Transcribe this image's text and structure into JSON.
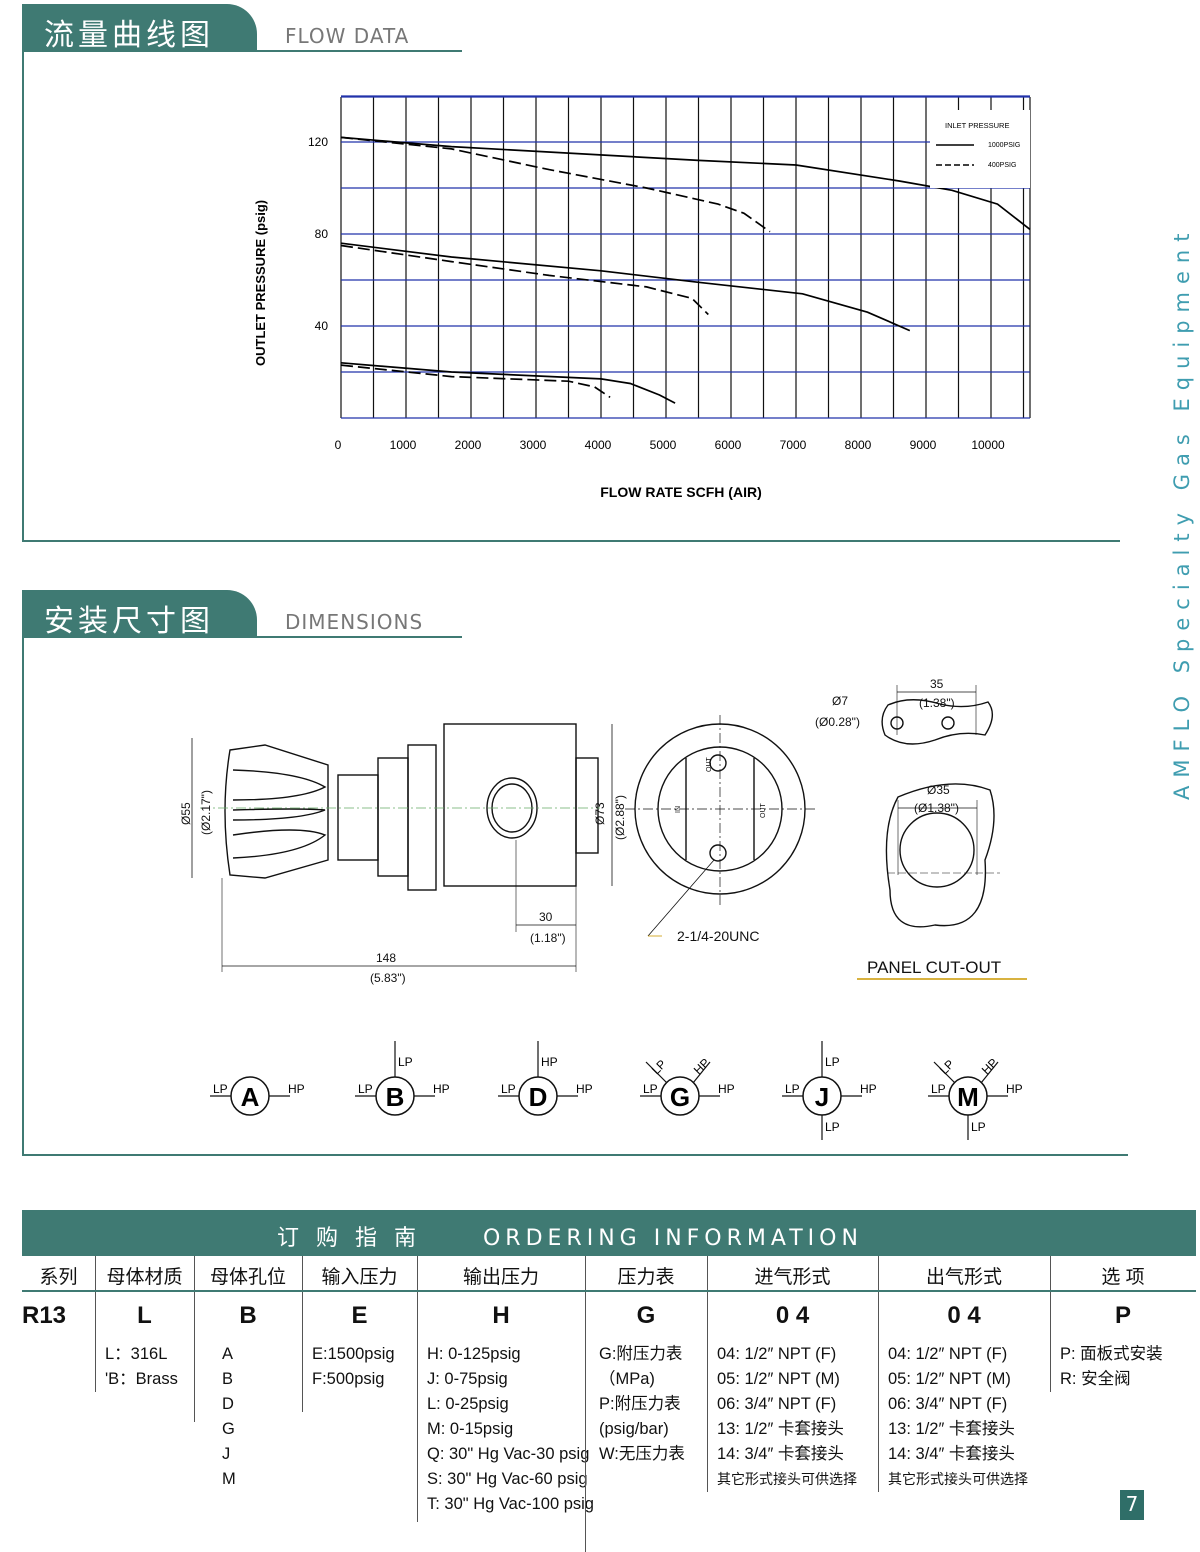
{
  "flow_section": {
    "title_cn": "流量曲线图",
    "title_en": "FLOW DATA"
  },
  "dim_section": {
    "title_cn": "安装尺寸图",
    "title_en": "DIMENSIONS"
  },
  "side_text": "AMFLO Specialty Gas Equipment",
  "chart_data": {
    "type": "line",
    "xlabel": "FLOW RATE SCFH (AIR)",
    "ylabel": "OUTLET PRESSURE (psig)",
    "xlim": [
      0,
      10600
    ],
    "ylim": [
      0,
      140
    ],
    "x_ticks": [
      "0",
      "1000",
      "2000",
      "3000",
      "4000",
      "5000",
      "6000",
      "7000",
      "8000",
      "9000",
      "10000"
    ],
    "y_ticks": [
      "40",
      "80",
      "120"
    ],
    "grid": true,
    "legend": {
      "title": "INLET PRESSURE",
      "placement": "top-right",
      "entries": [
        "1000PSIG",
        "400PSIG"
      ]
    },
    "series": [
      {
        "name": "1000PSIG",
        "style": "solid",
        "points": [
          [
            0,
            122
          ],
          [
            1700,
            118
          ],
          [
            5500,
            112
          ],
          [
            7000,
            110
          ],
          [
            8600,
            103
          ],
          [
            9400,
            99
          ],
          [
            10100,
            93
          ],
          [
            10600,
            82
          ]
        ]
      },
      {
        "name": "400PSIG",
        "style": "dashed",
        "points": [
          [
            0,
            122
          ],
          [
            1700,
            117
          ],
          [
            3200,
            108
          ],
          [
            4700,
            100
          ],
          [
            5800,
            93
          ],
          [
            6200,
            89
          ],
          [
            6600,
            81
          ]
        ]
      },
      {
        "name": "1000PSIG",
        "style": "solid",
        "points": [
          [
            0,
            76
          ],
          [
            1700,
            70
          ],
          [
            4000,
            64
          ],
          [
            5500,
            59
          ],
          [
            7100,
            54
          ],
          [
            8100,
            46
          ],
          [
            8750,
            38
          ]
        ]
      },
      {
        "name": "400PSIG",
        "style": "dashed",
        "points": [
          [
            0,
            75
          ],
          [
            1700,
            68
          ],
          [
            3200,
            62
          ],
          [
            4700,
            57
          ],
          [
            5400,
            52
          ],
          [
            5650,
            45
          ]
        ]
      },
      {
        "name": "1000PSIG",
        "style": "solid",
        "points": [
          [
            0,
            24
          ],
          [
            1700,
            20
          ],
          [
            4000,
            17
          ],
          [
            4450,
            15
          ],
          [
            4900,
            10
          ],
          [
            5140,
            6.5
          ]
        ]
      },
      {
        "name": "400PSIG",
        "style": "dashed",
        "points": [
          [
            0,
            23
          ],
          [
            1700,
            18
          ],
          [
            3500,
            16
          ],
          [
            3900,
            13.5
          ],
          [
            4140,
            9
          ]
        ]
      }
    ]
  },
  "dimensions": {
    "d55": "Ø55",
    "d55_in": "(Ø2.17\")",
    "d73": "Ø73",
    "d73_in": "(Ø2.88\")",
    "d30": "30",
    "d30_in": "(1.18\")",
    "d148": "148",
    "d148_in": "(5.83\")",
    "thread": "2-1/4-20UNC",
    "port_out": "OUT",
    "port_in": "IN",
    "d7": "Ø7",
    "d7_in": "(Ø0.28\")",
    "d35": "35",
    "d35_in": "(1.38\")",
    "d35b": "Ø35",
    "d35b_in": "(Ø1.38\")",
    "panel": "PANEL CUT-OUT"
  },
  "port_configs": [
    {
      "letter": "A",
      "left": "LP",
      "right": "HP",
      "up": "",
      "down": "",
      "ul": "",
      "ur": ""
    },
    {
      "letter": "B",
      "left": "LP",
      "right": "HP",
      "up": "LP",
      "down": "",
      "ul": "",
      "ur": ""
    },
    {
      "letter": "D",
      "left": "LP",
      "right": "HP",
      "up": "HP",
      "down": "",
      "ul": "",
      "ur": ""
    },
    {
      "letter": "G",
      "left": "LP",
      "right": "HP",
      "up": "",
      "down": "",
      "ul": "LP",
      "ur": "HP"
    },
    {
      "letter": "J",
      "left": "LP",
      "right": "HP",
      "up": "LP",
      "down": "LP",
      "ul": "",
      "ur": ""
    },
    {
      "letter": "M",
      "left": "LP",
      "right": "HP",
      "up": "",
      "down": "LP",
      "ul": "LP",
      "ur": "HP"
    }
  ],
  "ordering": {
    "title_cn": "订 购 指 南",
    "title_en": "ORDERING  INFORMATION",
    "columns": [
      {
        "header": "系列",
        "code": "R13",
        "options": []
      },
      {
        "header": "母体材质",
        "code": "L",
        "options": [
          "L：316L",
          "'B：Brass"
        ]
      },
      {
        "header": "母体孔位",
        "code": "B",
        "options": [
          "A",
          "B",
          "D",
          "G",
          "J",
          "M"
        ]
      },
      {
        "header": "输入压力",
        "code": "E",
        "options": [
          "E:1500psig",
          "F:500psig"
        ]
      },
      {
        "header": "输出压力",
        "code": "H",
        "options": [
          "H: 0-125psig",
          "J:  0-75psig",
          "L:  0-25psig",
          "M:  0-15psig",
          "Q: 30\" Hg Vac-30 psig",
          "S: 30\" Hg Vac-60 psig",
          "T: 30\" Hg Vac-100 psig"
        ]
      },
      {
        "header": "压力表",
        "code": "G",
        "options": [
          "G:附压力表",
          "（MPa)",
          "P:附压力表",
          "(psig/bar)",
          "W:无压力表"
        ]
      },
      {
        "header": "进气形式",
        "code": "0 4",
        "options": [
          "04:  1/2″  NPT  (F)",
          "05:  1/2″  NPT  (M)",
          "06:  3/4″  NPT  (F)",
          "13:  1/2″  卡套接头",
          "14:  3/4″  卡套接头"
        ],
        "note": "其它形式接头可供选择"
      },
      {
        "header": "出气形式",
        "code": "0 4",
        "options": [
          "04:  1/2″  NPT  (F)",
          "05:  1/2″  NPT  (M)",
          "06:  3/4″  NPT  (F)",
          "13:  1/2″  卡套接头",
          "14:  3/4″  卡套接头"
        ],
        "note": "其它形式接头可供选择"
      },
      {
        "header": "选 项",
        "code": "P",
        "options": [
          "P: 面板式安装",
          "R: 安全阀"
        ]
      }
    ]
  },
  "page_number": "7",
  "colors": {
    "teal": "#3f7a73",
    "grid_blue": "#2233aa",
    "side_text": "#3f9db0"
  }
}
